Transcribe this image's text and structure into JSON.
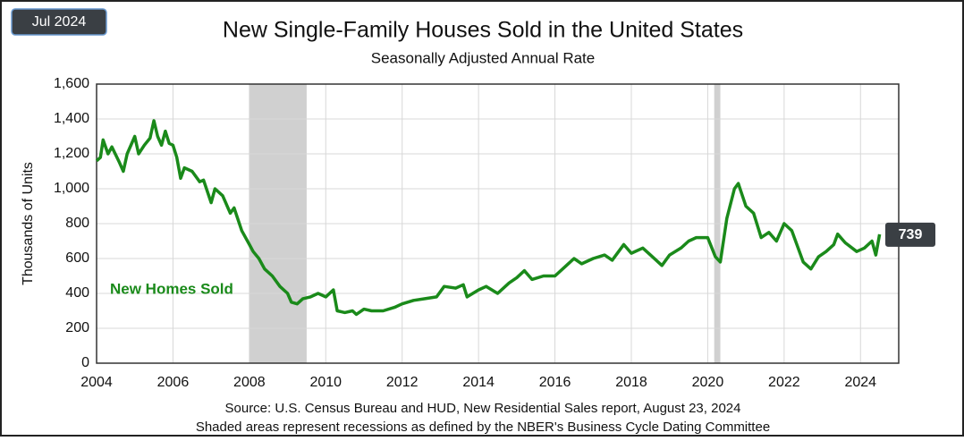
{
  "chart_data": {
    "type": "line",
    "badge": "Jul 2024",
    "title": "New Single-Family Houses Sold in the United States",
    "subtitle": "Seasonally Adjusted Annual Rate",
    "y_label": "Thousands of Units",
    "source": "Source:  U.S. Census Bureau and HUD, New Residential Sales report, August 23, 2024",
    "note": "Shaded areas represent recessions as defined by the NBER's Business Cycle Dating Committee",
    "recessions": [
      [
        2008.0,
        2009.5
      ],
      [
        2020.17,
        2020.33
      ]
    ],
    "recession_color": "#d0d0d0",
    "x": [
      2004.0,
      2004.1,
      2004.17,
      2004.3,
      2004.4,
      2004.6,
      2004.7,
      2004.8,
      2005.0,
      2005.1,
      2005.25,
      2005.4,
      2005.5,
      2005.6,
      2005.7,
      2005.8,
      2005.9,
      2006.0,
      2006.1,
      2006.2,
      2006.3,
      2006.5,
      2006.7,
      2006.8,
      2007.0,
      2007.1,
      2007.3,
      2007.5,
      2007.6,
      2007.8,
      2008.0,
      2008.1,
      2008.25,
      2008.4,
      2008.6,
      2008.8,
      2009.0,
      2009.1,
      2009.25,
      2009.4,
      2009.6,
      2009.8,
      2010.0,
      2010.2,
      2010.3,
      2010.5,
      2010.7,
      2010.8,
      2011.0,
      2011.2,
      2011.5,
      2011.8,
      2012.0,
      2012.3,
      2012.6,
      2012.9,
      2013.1,
      2013.4,
      2013.6,
      2013.7,
      2014.0,
      2014.2,
      2014.5,
      2014.8,
      2015.0,
      2015.2,
      2015.4,
      2015.7,
      2016.0,
      2016.3,
      2016.5,
      2016.7,
      2017.0,
      2017.3,
      2017.5,
      2017.8,
      2018.0,
      2018.3,
      2018.5,
      2018.8,
      2019.0,
      2019.3,
      2019.5,
      2019.7,
      2020.0,
      2020.2,
      2020.33,
      2020.5,
      2020.7,
      2020.8,
      2021.0,
      2021.2,
      2021.4,
      2021.6,
      2021.8,
      2022.0,
      2022.2,
      2022.5,
      2022.7,
      2022.9,
      2023.1,
      2023.3,
      2023.4,
      2023.6,
      2023.9,
      2024.1,
      2024.3,
      2024.4,
      2024.5
    ],
    "series": [
      {
        "name": "New Homes Sold",
        "color": "#1a8a1a",
        "values": [
          1160,
          1180,
          1280,
          1200,
          1240,
          1150,
          1100,
          1200,
          1300,
          1200,
          1250,
          1290,
          1390,
          1300,
          1250,
          1330,
          1260,
          1250,
          1180,
          1060,
          1120,
          1100,
          1040,
          1050,
          920,
          1000,
          960,
          860,
          890,
          760,
          680,
          640,
          600,
          540,
          500,
          440,
          400,
          350,
          340,
          370,
          380,
          400,
          380,
          420,
          300,
          290,
          300,
          280,
          310,
          300,
          300,
          320,
          340,
          360,
          370,
          380,
          440,
          430,
          450,
          380,
          420,
          440,
          400,
          460,
          490,
          530,
          480,
          500,
          500,
          560,
          600,
          570,
          600,
          620,
          590,
          680,
          630,
          660,
          620,
          560,
          620,
          660,
          700,
          720,
          720,
          610,
          580,
          830,
          1000,
          1030,
          900,
          860,
          720,
          750,
          700,
          800,
          760,
          580,
          540,
          610,
          640,
          680,
          740,
          690,
          640,
          660,
          700,
          620,
          739
        ]
      }
    ],
    "xlim": [
      2004,
      2025
    ],
    "ylim": [
      0,
      1600
    ],
    "xticks": [
      2004,
      2006,
      2008,
      2010,
      2012,
      2014,
      2016,
      2018,
      2020,
      2022,
      2024
    ],
    "yticks": [
      0,
      200,
      400,
      600,
      800,
      {
        "value": 1000,
        "label": "1,000"
      },
      {
        "value": 1200,
        "label": "1,200"
      },
      {
        "value": 1400,
        "label": "1,400"
      },
      {
        "value": 1600,
        "label": "1,600"
      }
    ],
    "grid": true
  }
}
